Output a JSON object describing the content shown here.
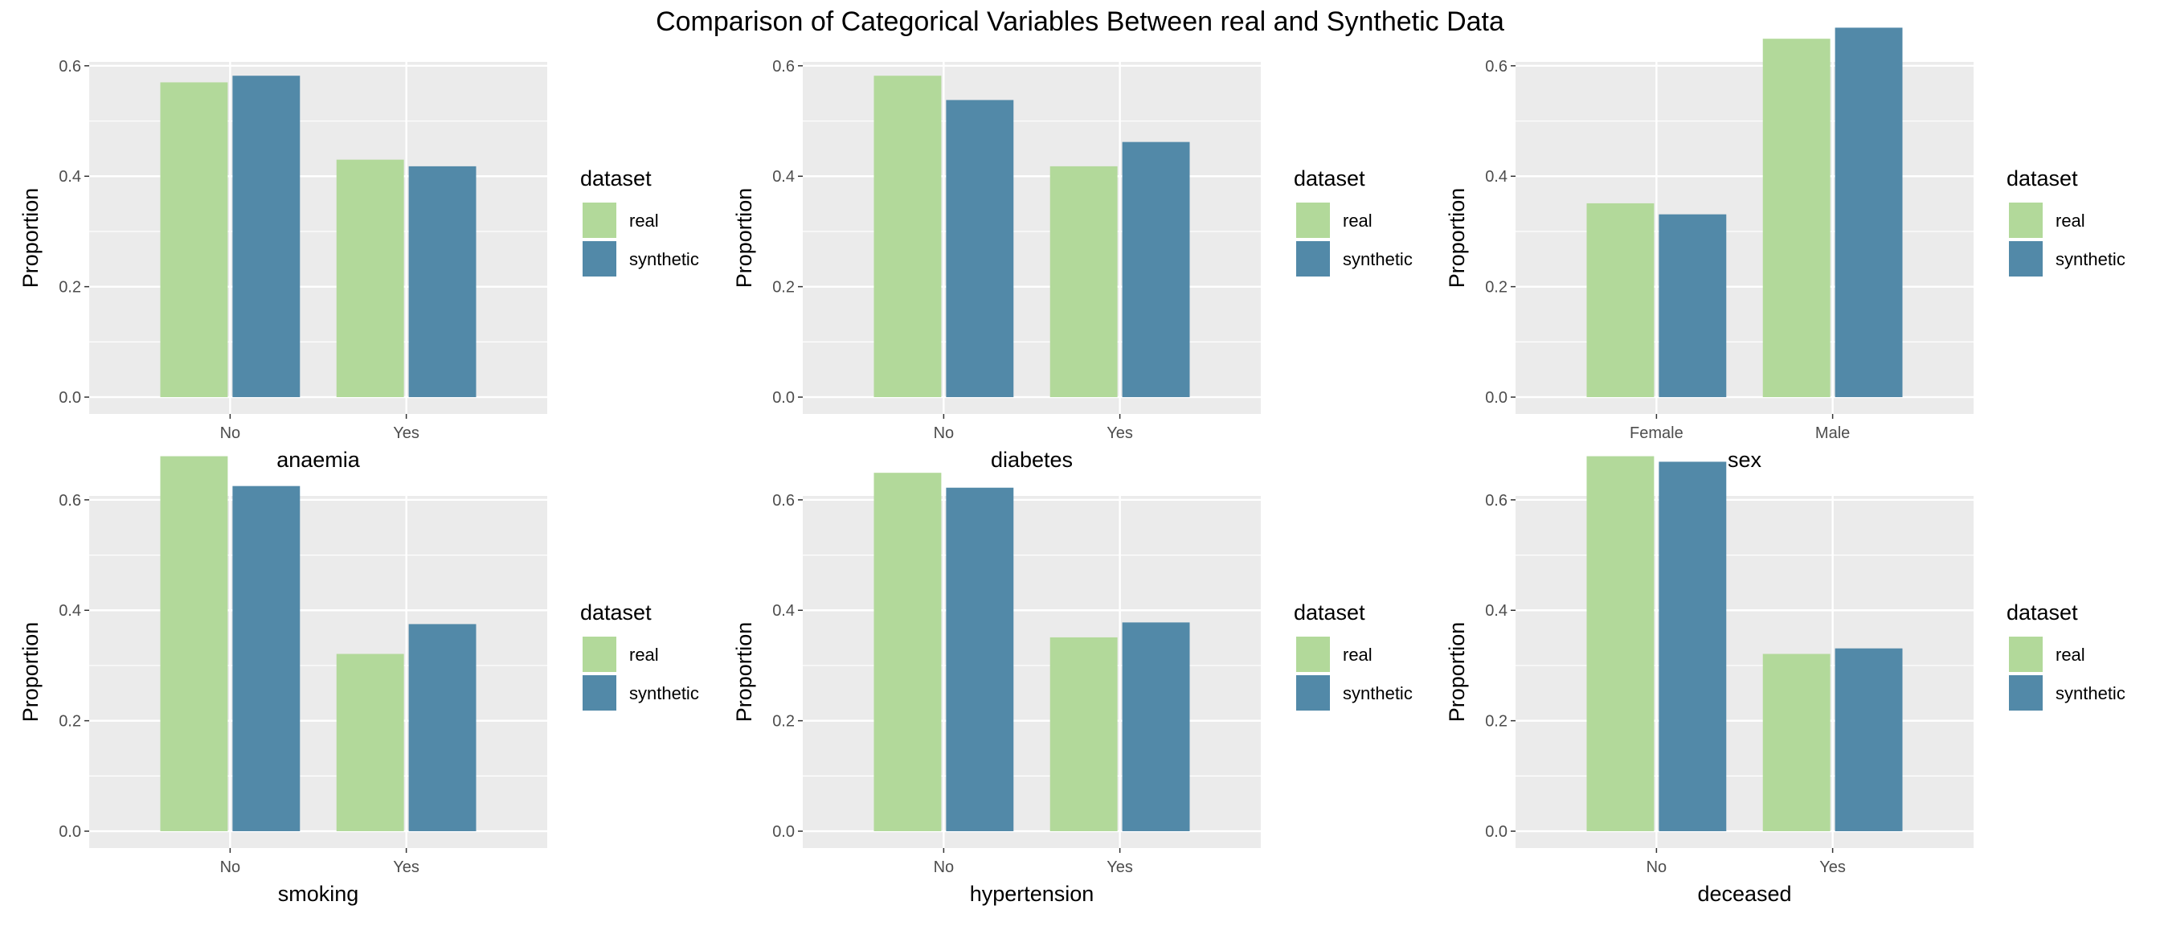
{
  "figure": {
    "title": "Comparison of Categorical Variables Between real and Synthetic Data"
  },
  "colors": {
    "real": "#b2d99a",
    "synthetic": "#5289a8",
    "panel_background": "#ebebeb",
    "grid": "#ffffff"
  },
  "chart_data": [
    {
      "type": "bar",
      "xlabel": "anaemia",
      "ylabel": "Proportion",
      "categories": [
        "No",
        "Yes"
      ],
      "series": [
        {
          "name": "real",
          "values": [
            0.57,
            0.43
          ]
        },
        {
          "name": "synthetic",
          "values": [
            0.582,
            0.418
          ]
        }
      ],
      "ylim": [
        0,
        0.6
      ],
      "yticks": [
        0.0,
        0.2,
        0.4,
        0.6
      ],
      "ytick_labels": [
        "0.0",
        "0.2",
        "0.4",
        "0.6"
      ],
      "grid": true,
      "legend": {
        "title": "dataset",
        "placement": "right",
        "entries": [
          "real",
          "synthetic"
        ]
      }
    },
    {
      "type": "bar",
      "xlabel": "diabetes",
      "ylabel": "Proportion",
      "categories": [
        "No",
        "Yes"
      ],
      "series": [
        {
          "name": "real",
          "values": [
            0.582,
            0.418
          ]
        },
        {
          "name": "synthetic",
          "values": [
            0.538,
            0.462
          ]
        }
      ],
      "ylim": [
        0,
        0.6
      ],
      "yticks": [
        0.0,
        0.2,
        0.4,
        0.6
      ],
      "ytick_labels": [
        "0.0",
        "0.2",
        "0.4",
        "0.6"
      ],
      "grid": true,
      "legend": {
        "title": "dataset",
        "placement": "right",
        "entries": [
          "real",
          "synthetic"
        ]
      }
    },
    {
      "type": "bar",
      "xlabel": "sex",
      "ylabel": "Proportion",
      "categories": [
        "Female",
        "Male"
      ],
      "series": [
        {
          "name": "real",
          "values": [
            0.351,
            0.649
          ]
        },
        {
          "name": "synthetic",
          "values": [
            0.331,
            0.669
          ]
        }
      ],
      "ylim": [
        0,
        0.6
      ],
      "yticks": [
        0.0,
        0.2,
        0.4,
        0.6
      ],
      "ytick_labels": [
        "0.0",
        "0.2",
        "0.4",
        "0.6"
      ],
      "grid": true,
      "legend": {
        "title": "dataset",
        "placement": "right",
        "entries": [
          "real",
          "synthetic"
        ]
      }
    },
    {
      "type": "bar",
      "xlabel": "smoking",
      "ylabel": "Proportion",
      "categories": [
        "No",
        "Yes"
      ],
      "series": [
        {
          "name": "real",
          "values": [
            0.679,
            0.321
          ]
        },
        {
          "name": "synthetic",
          "values": [
            0.625,
            0.375
          ]
        }
      ],
      "ylim": [
        0,
        0.6
      ],
      "yticks": [
        0.0,
        0.2,
        0.4,
        0.6
      ],
      "ytick_labels": [
        "0.0",
        "0.2",
        "0.4",
        "0.6"
      ],
      "grid": true,
      "legend": {
        "title": "dataset",
        "placement": "right",
        "entries": [
          "real",
          "synthetic"
        ]
      }
    },
    {
      "type": "bar",
      "xlabel": "hypertension",
      "ylabel": "Proportion",
      "categories": [
        "No",
        "Yes"
      ],
      "series": [
        {
          "name": "real",
          "values": [
            0.649,
            0.351
          ]
        },
        {
          "name": "synthetic",
          "values": [
            0.622,
            0.378
          ]
        }
      ],
      "ylim": [
        0,
        0.6
      ],
      "yticks": [
        0.0,
        0.2,
        0.4,
        0.6
      ],
      "ytick_labels": [
        "0.0",
        "0.2",
        "0.4",
        "0.6"
      ],
      "grid": true,
      "legend": {
        "title": "dataset",
        "placement": "right",
        "entries": [
          "real",
          "synthetic"
        ]
      }
    },
    {
      "type": "bar",
      "xlabel": "deceased",
      "ylabel": "Proportion",
      "categories": [
        "No",
        "Yes"
      ],
      "series": [
        {
          "name": "real",
          "values": [
            0.679,
            0.321
          ]
        },
        {
          "name": "synthetic",
          "values": [
            0.669,
            0.331
          ]
        }
      ],
      "ylim": [
        0,
        0.6
      ],
      "yticks": [
        0.0,
        0.2,
        0.4,
        0.6
      ],
      "ytick_labels": [
        "0.0",
        "0.2",
        "0.4",
        "0.6"
      ],
      "grid": true,
      "legend": {
        "title": "dataset",
        "placement": "right",
        "entries": [
          "real",
          "synthetic"
        ]
      }
    }
  ]
}
